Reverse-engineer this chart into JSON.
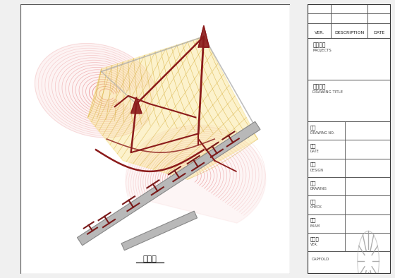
{
  "background_color": "#f0f0f0",
  "main_bg": "#ffffff",
  "caption": "渲视图",
  "membrane_red": "#e8888a",
  "membrane_red_fill": "#f0a0a0",
  "membrane_yellow": "#f0c830",
  "membrane_yellow_fill": "#f8e080",
  "grid_yellow": "#d4aa30",
  "grid_red": "#cc6666",
  "mast_color": "#8b1a1a",
  "beam_color": "#b8b8b8",
  "beam_edge": "#888888",
  "connector_color": "#7a1a1a",
  "circle_color": "#7799bb",
  "title_line_color": "#444444",
  "tb_text_color": "#111111",
  "tb_subtext_color": "#444444"
}
